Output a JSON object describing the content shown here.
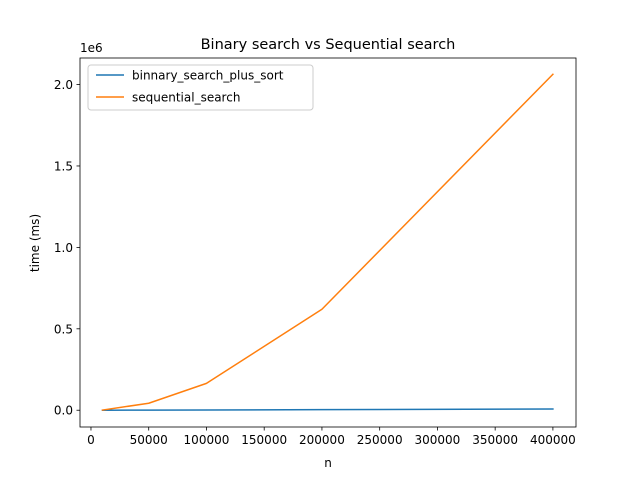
{
  "chart_data": {
    "type": "line",
    "title": "Binary search vs Sequential search",
    "xlabel": "n",
    "ylabel": "time (ms)",
    "y_offset_label": "1e6",
    "xlim": [
      -9500,
      420000
    ],
    "ylim": [
      -103000,
      2163000
    ],
    "x_ticks": [
      {
        "value": 0,
        "label": "0"
      },
      {
        "value": 50000,
        "label": "50000"
      },
      {
        "value": 100000,
        "label": "100000"
      },
      {
        "value": 150000,
        "label": "150000"
      },
      {
        "value": 200000,
        "label": "200000"
      },
      {
        "value": 250000,
        "label": "250000"
      },
      {
        "value": 300000,
        "label": "300000"
      },
      {
        "value": 350000,
        "label": "350000"
      },
      {
        "value": 400000,
        "label": "400000"
      }
    ],
    "y_ticks": [
      {
        "value": 0,
        "label": "0.0"
      },
      {
        "value": 500000,
        "label": "0.5"
      },
      {
        "value": 1000000,
        "label": "1.0"
      },
      {
        "value": 1500000,
        "label": "1.5"
      },
      {
        "value": 2000000,
        "label": "2.0"
      }
    ],
    "grid": false,
    "legend_position": "top-left",
    "series": [
      {
        "name": "binnary_search_plus_sort",
        "color": "#1f77b4",
        "x": [
          10000,
          50000,
          100000,
          200000,
          400000
        ],
        "y": [
          100,
          700,
          1500,
          3500,
          7500
        ]
      },
      {
        "name": "sequential_search",
        "color": "#ff7f0e",
        "x": [
          10000,
          50000,
          100000,
          200000,
          400000
        ],
        "y": [
          1000,
          43000,
          165000,
          620000,
          2063000
        ]
      }
    ]
  }
}
